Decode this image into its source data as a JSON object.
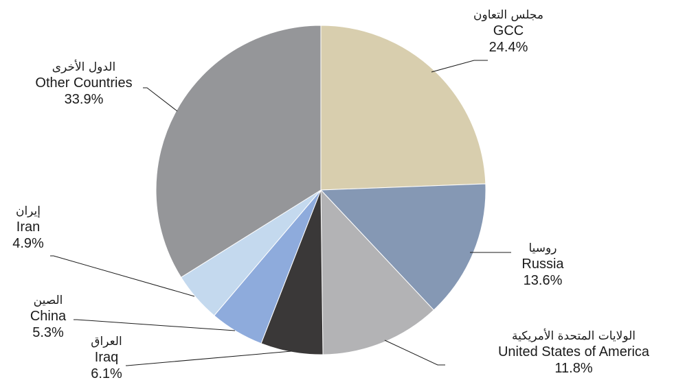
{
  "chart_data": {
    "type": "pie",
    "title": "",
    "start_angle_deg": 0,
    "direction": "clockwise",
    "slices": [
      {
        "label_ar": "مجلس التعاون",
        "label_en": "GCC",
        "value": 24.4,
        "value_label": "24.4%",
        "color": "#d8ceae"
      },
      {
        "label_ar": "روسيا",
        "label_en": "Russia",
        "value": 13.6,
        "value_label": "13.6%",
        "color": "#8598b4"
      },
      {
        "label_ar": "الولايات المتحدة الأمريكية",
        "label_en": "United States of America",
        "value": 11.8,
        "value_label": "11.8%",
        "color": "#b3b3b5"
      },
      {
        "label_ar": "العراق",
        "label_en": "Iraq",
        "value": 6.1,
        "value_label": "6.1%",
        "color": "#3a3838"
      },
      {
        "label_ar": "الصين",
        "label_en": "China",
        "value": 5.3,
        "value_label": "5.3%",
        "color": "#8eabdc"
      },
      {
        "label_ar": "إيران",
        "label_en": "Iran",
        "value": 4.9,
        "value_label": "4.9%",
        "color": "#c4d9ee"
      },
      {
        "label_ar": "الدول الأخرى",
        "label_en": "Other Countries",
        "value": 33.9,
        "value_label": "33.9%",
        "color": "#959699"
      }
    ]
  }
}
